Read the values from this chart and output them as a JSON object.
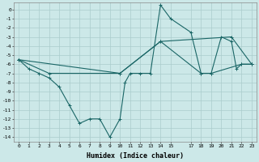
{
  "xlabel": "Humidex (Indice chaleur)",
  "bg_color": "#cce8e8",
  "grid_color": "#aacccc",
  "line_color": "#1a6666",
  "series1": [
    [
      0,
      -5.5
    ],
    [
      1,
      -6.5
    ],
    [
      2,
      -7.0
    ],
    [
      3,
      -7.5
    ],
    [
      4,
      -8.5
    ],
    [
      5,
      -10.5
    ],
    [
      6,
      -12.5
    ],
    [
      7,
      -12.0
    ],
    [
      8,
      -12.0
    ],
    [
      9,
      -14.0
    ],
    [
      10,
      -12.0
    ],
    [
      10.5,
      -8.0
    ],
    [
      11,
      -7.0
    ],
    [
      12,
      -7.0
    ],
    [
      13,
      -7.0
    ],
    [
      14,
      0.5
    ],
    [
      15,
      -1.0
    ],
    [
      17,
      -2.5
    ],
    [
      18,
      -7.0
    ],
    [
      19,
      -7.0
    ],
    [
      20,
      -3.0
    ],
    [
      21,
      -3.5
    ],
    [
      21.5,
      -6.5
    ],
    [
      22,
      -6.0
    ],
    [
      23,
      -6.0
    ]
  ],
  "series2": [
    [
      0,
      -5.5
    ],
    [
      3,
      -7.0
    ],
    [
      10,
      -7.0
    ],
    [
      14,
      -3.5
    ],
    [
      18,
      -7.0
    ],
    [
      19,
      -7.0
    ],
    [
      22,
      -6.0
    ],
    [
      23,
      -6.0
    ]
  ],
  "series3": [
    [
      0,
      -5.5
    ],
    [
      10,
      -7.0
    ],
    [
      14,
      -3.5
    ],
    [
      21,
      -3.0
    ],
    [
      23,
      -6.0
    ]
  ],
  "xlim": [
    -0.5,
    23.5
  ],
  "ylim": [
    -14.5,
    0.8
  ],
  "xticks": [
    0,
    1,
    2,
    3,
    4,
    5,
    6,
    7,
    8,
    9,
    10,
    11,
    12,
    13,
    14,
    15,
    17,
    18,
    19,
    20,
    21,
    22,
    23
  ],
  "yticks": [
    0,
    -1,
    -2,
    -3,
    -4,
    -5,
    -6,
    -7,
    -8,
    -9,
    -10,
    -11,
    -12,
    -13,
    -14
  ]
}
